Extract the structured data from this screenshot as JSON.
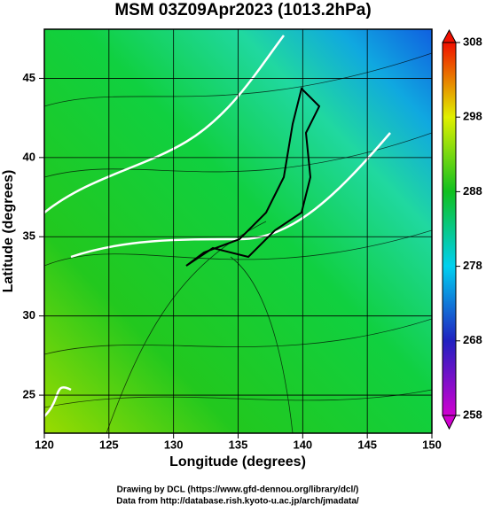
{
  "title": "MSM 03Z09Apr2023 (1013.2hPa)",
  "x_axis": {
    "label": "Longitude (degrees)",
    "lim": [
      120,
      150
    ],
    "ticks": [
      120,
      125,
      130,
      135,
      140,
      145,
      150
    ]
  },
  "y_axis": {
    "label": "Latitude  (degrees)",
    "lim": [
      22.6,
      48.1
    ],
    "ticks": [
      25,
      30,
      35,
      40,
      45
    ]
  },
  "colorbar": {
    "lim": [
      258,
      308
    ],
    "ticks": [
      258,
      268,
      278,
      288,
      298,
      308
    ]
  },
  "footer": [
    "Drawing by DCL (https://www.gfd-dennou.org/library/dcl/)",
    "Data from http://database.rish.kyoto-u.ac.jp/arch/jmadata/"
  ]
}
